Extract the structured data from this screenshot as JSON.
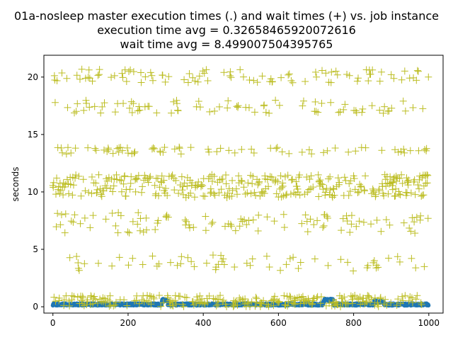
{
  "chart_data": {
    "type": "scatter",
    "title": [
      "01a-nosleep master execution times (.) and wait times (+) vs. job instance",
      "execution time avg = 0.32658465920072616",
      "wait time avg = 8.499007504395765"
    ],
    "xlabel": "",
    "ylabel": "seconds",
    "xlim": [
      -24,
      1038
    ],
    "ylim": [
      -0.55,
      21.9
    ],
    "xticks": [
      0,
      200,
      400,
      600,
      800,
      1000
    ],
    "yticks": [
      0,
      5,
      10,
      15,
      20
    ],
    "grid": false,
    "n_points": 1000,
    "series": [
      {
        "name": "execution times",
        "marker": "dot",
        "color": "#1f77b4",
        "avg": 0.32658465920072616,
        "baseline": 0.2,
        "bumps": [
          {
            "x": [
              290,
              305
            ],
            "y": 0.7
          },
          {
            "x": [
              720,
              745
            ],
            "y": 0.7
          },
          {
            "x": [
              855,
              880
            ],
            "y": 0.55
          }
        ]
      },
      {
        "name": "wait times",
        "marker": "plus",
        "color": "#bcbd22",
        "avg": 8.499007504395765,
        "levels": [
          {
            "y": 0.5,
            "jitter": 0.5,
            "weight": 4
          },
          {
            "y": 3.8,
            "jitter": 0.7,
            "weight": 1
          },
          {
            "y": 7.3,
            "jitter": 0.9,
            "weight": 1.5
          },
          {
            "y": 10.5,
            "jitter": 1.0,
            "weight": 5
          },
          {
            "y": 13.6,
            "jitter": 0.3,
            "weight": 1
          },
          {
            "y": 17.4,
            "jitter": 0.6,
            "weight": 1.5
          },
          {
            "y": 20.1,
            "jitter": 0.6,
            "weight": 1.5
          }
        ]
      }
    ]
  }
}
